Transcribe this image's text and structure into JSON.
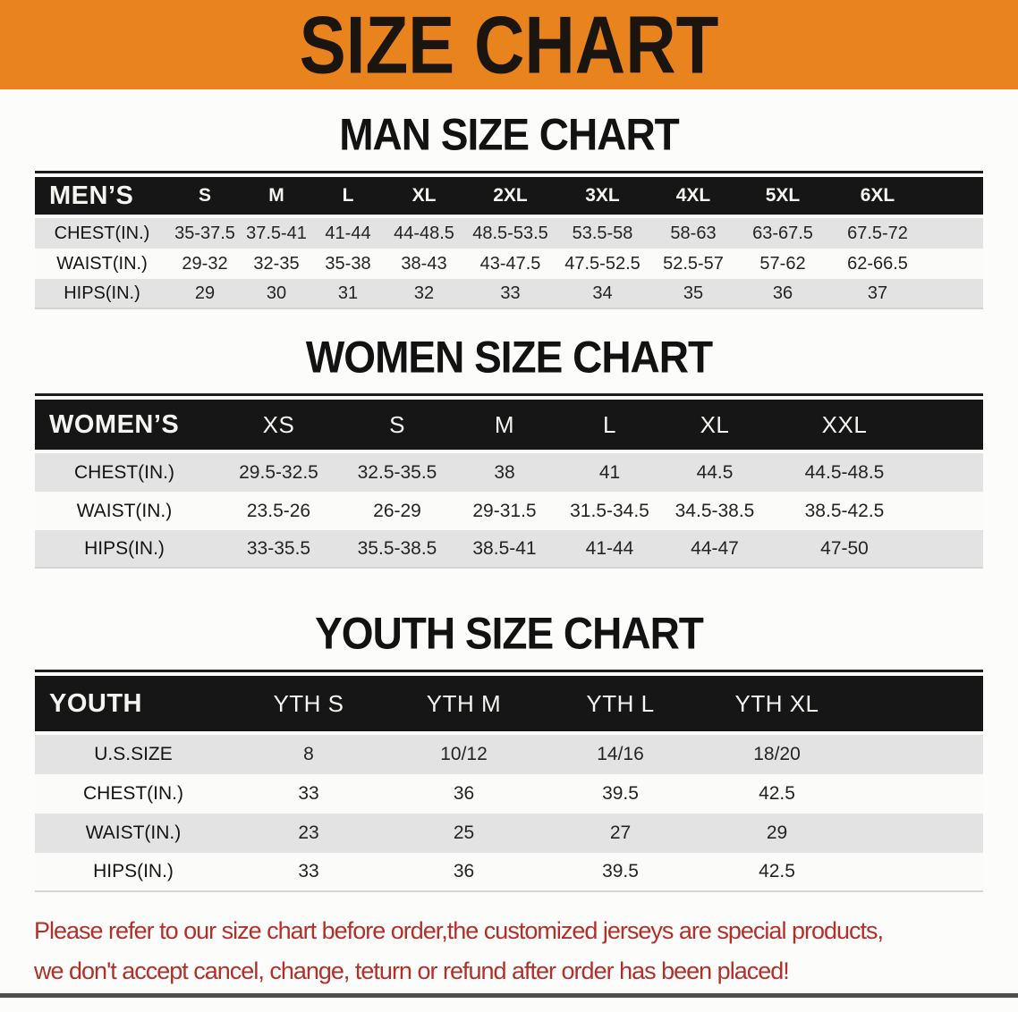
{
  "banner": {
    "title": "SIZE CHART"
  },
  "sections": [
    {
      "title": "MAN SIZE CHART",
      "table": {
        "header_label": "MEN’S",
        "columns": [
          "S",
          "M",
          "L",
          "XL",
          "2XL",
          "3XL",
          "4XL",
          "5XL",
          "6XL"
        ],
        "rows": [
          {
            "label": "CHEST(IN.)",
            "values": [
              "35-37.5",
              "37.5-41",
              "41-44",
              "44-48.5",
              "48.5-53.5",
              "53.5-58",
              "58-63",
              "63-67.5",
              "67.5-72"
            ]
          },
          {
            "label": "WAIST(IN.)",
            "values": [
              "29-32",
              "32-35",
              "35-38",
              "38-43",
              "43-47.5",
              "47.5-52.5",
              "52.5-57",
              "57-62",
              "62-66.5"
            ]
          },
          {
            "label": "HIPS(IN.)",
            "values": [
              "29",
              "30",
              "31",
              "32",
              "33",
              "34",
              "35",
              "36",
              "37"
            ]
          }
        ]
      }
    },
    {
      "title": "WOMEN SIZE CHART",
      "table": {
        "header_label": "WOMEN’S",
        "columns": [
          "XS",
          "S",
          "M",
          "L",
          "XL",
          "XXL"
        ],
        "rows": [
          {
            "label": "CHEST(IN.)",
            "values": [
              "29.5-32.5",
              "32.5-35.5",
              "38",
              "41",
              "44.5",
              "44.5-48.5"
            ]
          },
          {
            "label": "WAIST(IN.)",
            "values": [
              "23.5-26",
              "26-29",
              "29-31.5",
              "31.5-34.5",
              "34.5-38.5",
              "38.5-42.5"
            ]
          },
          {
            "label": "HIPS(IN.)",
            "values": [
              "33-35.5",
              "35.5-38.5",
              "38.5-41",
              "41-44",
              "44-47",
              "47-50"
            ]
          }
        ]
      }
    },
    {
      "title": "YOUTH SIZE CHART",
      "table": {
        "header_label": "YOUTH",
        "columns": [
          "YTH S",
          "YTH M",
          "YTH L",
          "YTH XL"
        ],
        "rows": [
          {
            "label": "U.S.SIZE",
            "values": [
              "8",
              "10/12",
              "14/16",
              "18/20"
            ]
          },
          {
            "label": "CHEST(IN.)",
            "values": [
              "33",
              "36",
              "39.5",
              "42.5"
            ]
          },
          {
            "label": "WAIST(IN.)",
            "values": [
              "23",
              "25",
              "27",
              "29"
            ]
          },
          {
            "label": "HIPS(IN.)",
            "values": [
              "33",
              "36",
              "39.5",
              "42.5"
            ]
          }
        ]
      }
    }
  ],
  "notice": {
    "line1": "Please refer to our size chart before order,the customized jerseys are special products,",
    "line2": "we don't accept cancel, change, teturn or refund after order has been placed!"
  },
  "colors": {
    "banner_orange": "#E8831E",
    "header_black": "#161616",
    "row_gray": "#E3E3E3",
    "notice_red": "#B2302A"
  }
}
